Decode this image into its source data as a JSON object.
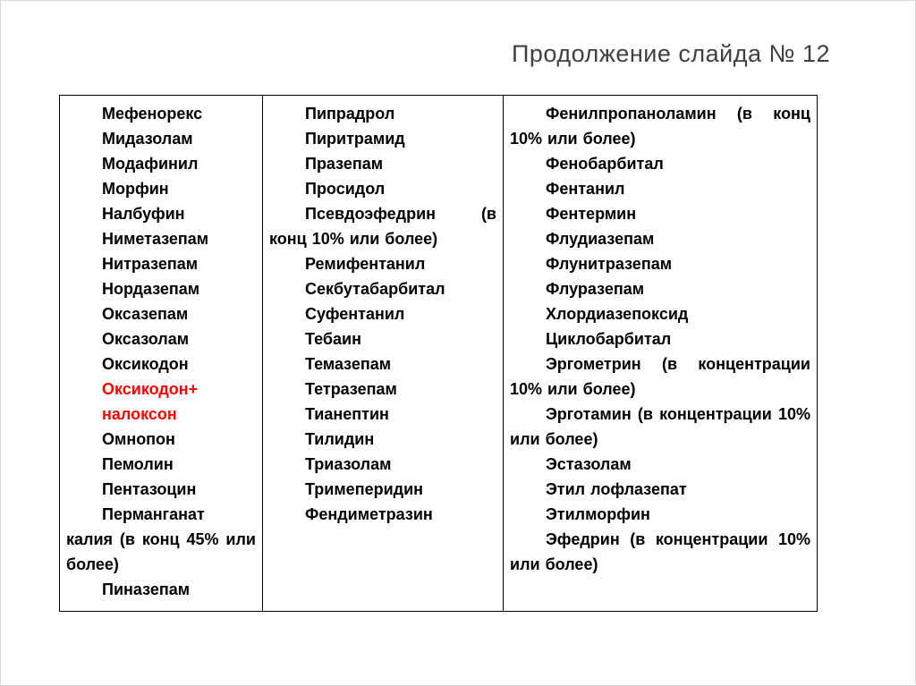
{
  "title": "Продолжение слайда № 12",
  "colors": {
    "text": "#000000",
    "highlight_red": "#fe0000",
    "title": "#404040",
    "border": "#000000"
  },
  "table": {
    "columns": [
      {
        "name": "column-1",
        "items": [
          {
            "text": "Мефенорекс"
          },
          {
            "text": "Мидазолам"
          },
          {
            "text": "Модафинил"
          },
          {
            "text": "Морфин"
          },
          {
            "text": "Налбуфин"
          },
          {
            "text": "Ниметазепам"
          },
          {
            "text": "Нитразепам"
          },
          {
            "text": "Нордазепам"
          },
          {
            "text": "Оксазепам"
          },
          {
            "text": "Оксазолам"
          },
          {
            "text": "Оксикодон"
          },
          {
            "text": "Оксикодон+",
            "red": true
          },
          {
            "text": "налоксон",
            "red": true
          },
          {
            "text": "Омнопон"
          },
          {
            "text": "Пемолин"
          },
          {
            "text": "Пентазоцин"
          },
          {
            "text": "Перманганат калия (в конц 45% или более)"
          },
          {
            "text": "Пиназепам"
          }
        ]
      },
      {
        "name": "column-2",
        "items": [
          {
            "text": "Пипрадрол"
          },
          {
            "text": "Пиритрамид"
          },
          {
            "text": "Празепам"
          },
          {
            "text": "Просидол"
          },
          {
            "text": "Псевдоэфедрин (в конц 10% или более)"
          },
          {
            "text": "Ремифентанил"
          },
          {
            "text": "Секбутабарбитал"
          },
          {
            "text": "Суфентанил"
          },
          {
            "text": "Тебаин"
          },
          {
            "text": "Темазепам"
          },
          {
            "text": "Тетразепам"
          },
          {
            "text": "Тианептин"
          },
          {
            "text": "Тилидин"
          },
          {
            "text": "Триазолам"
          },
          {
            "text": "Тримеперидин"
          },
          {
            "text": "Фендиметразин"
          }
        ]
      },
      {
        "name": "column-3",
        "items": [
          {
            "text": "Фенилпропаноламин (в конц 10% или более)"
          },
          {
            "text": "Фенобарбитал"
          },
          {
            "text": "Фентанил"
          },
          {
            "text": "Фентермин"
          },
          {
            "text": "Флудиазепам"
          },
          {
            "text": "Флунитразепам"
          },
          {
            "text": "Флуразепам"
          },
          {
            "text": "Хлордиазепоксид"
          },
          {
            "text": "Циклобарбитал"
          },
          {
            "text": "Эргометрин (в концентрации 10% или более)"
          },
          {
            "text": "Эрготамин (в концентрации 10% или более)"
          },
          {
            "text": "Эстазолам"
          },
          {
            "text": "Этил лофлазепат"
          },
          {
            "text": "Этилморфин"
          },
          {
            "text": "Эфедрин (в концентрации 10% или более)"
          }
        ]
      }
    ]
  }
}
